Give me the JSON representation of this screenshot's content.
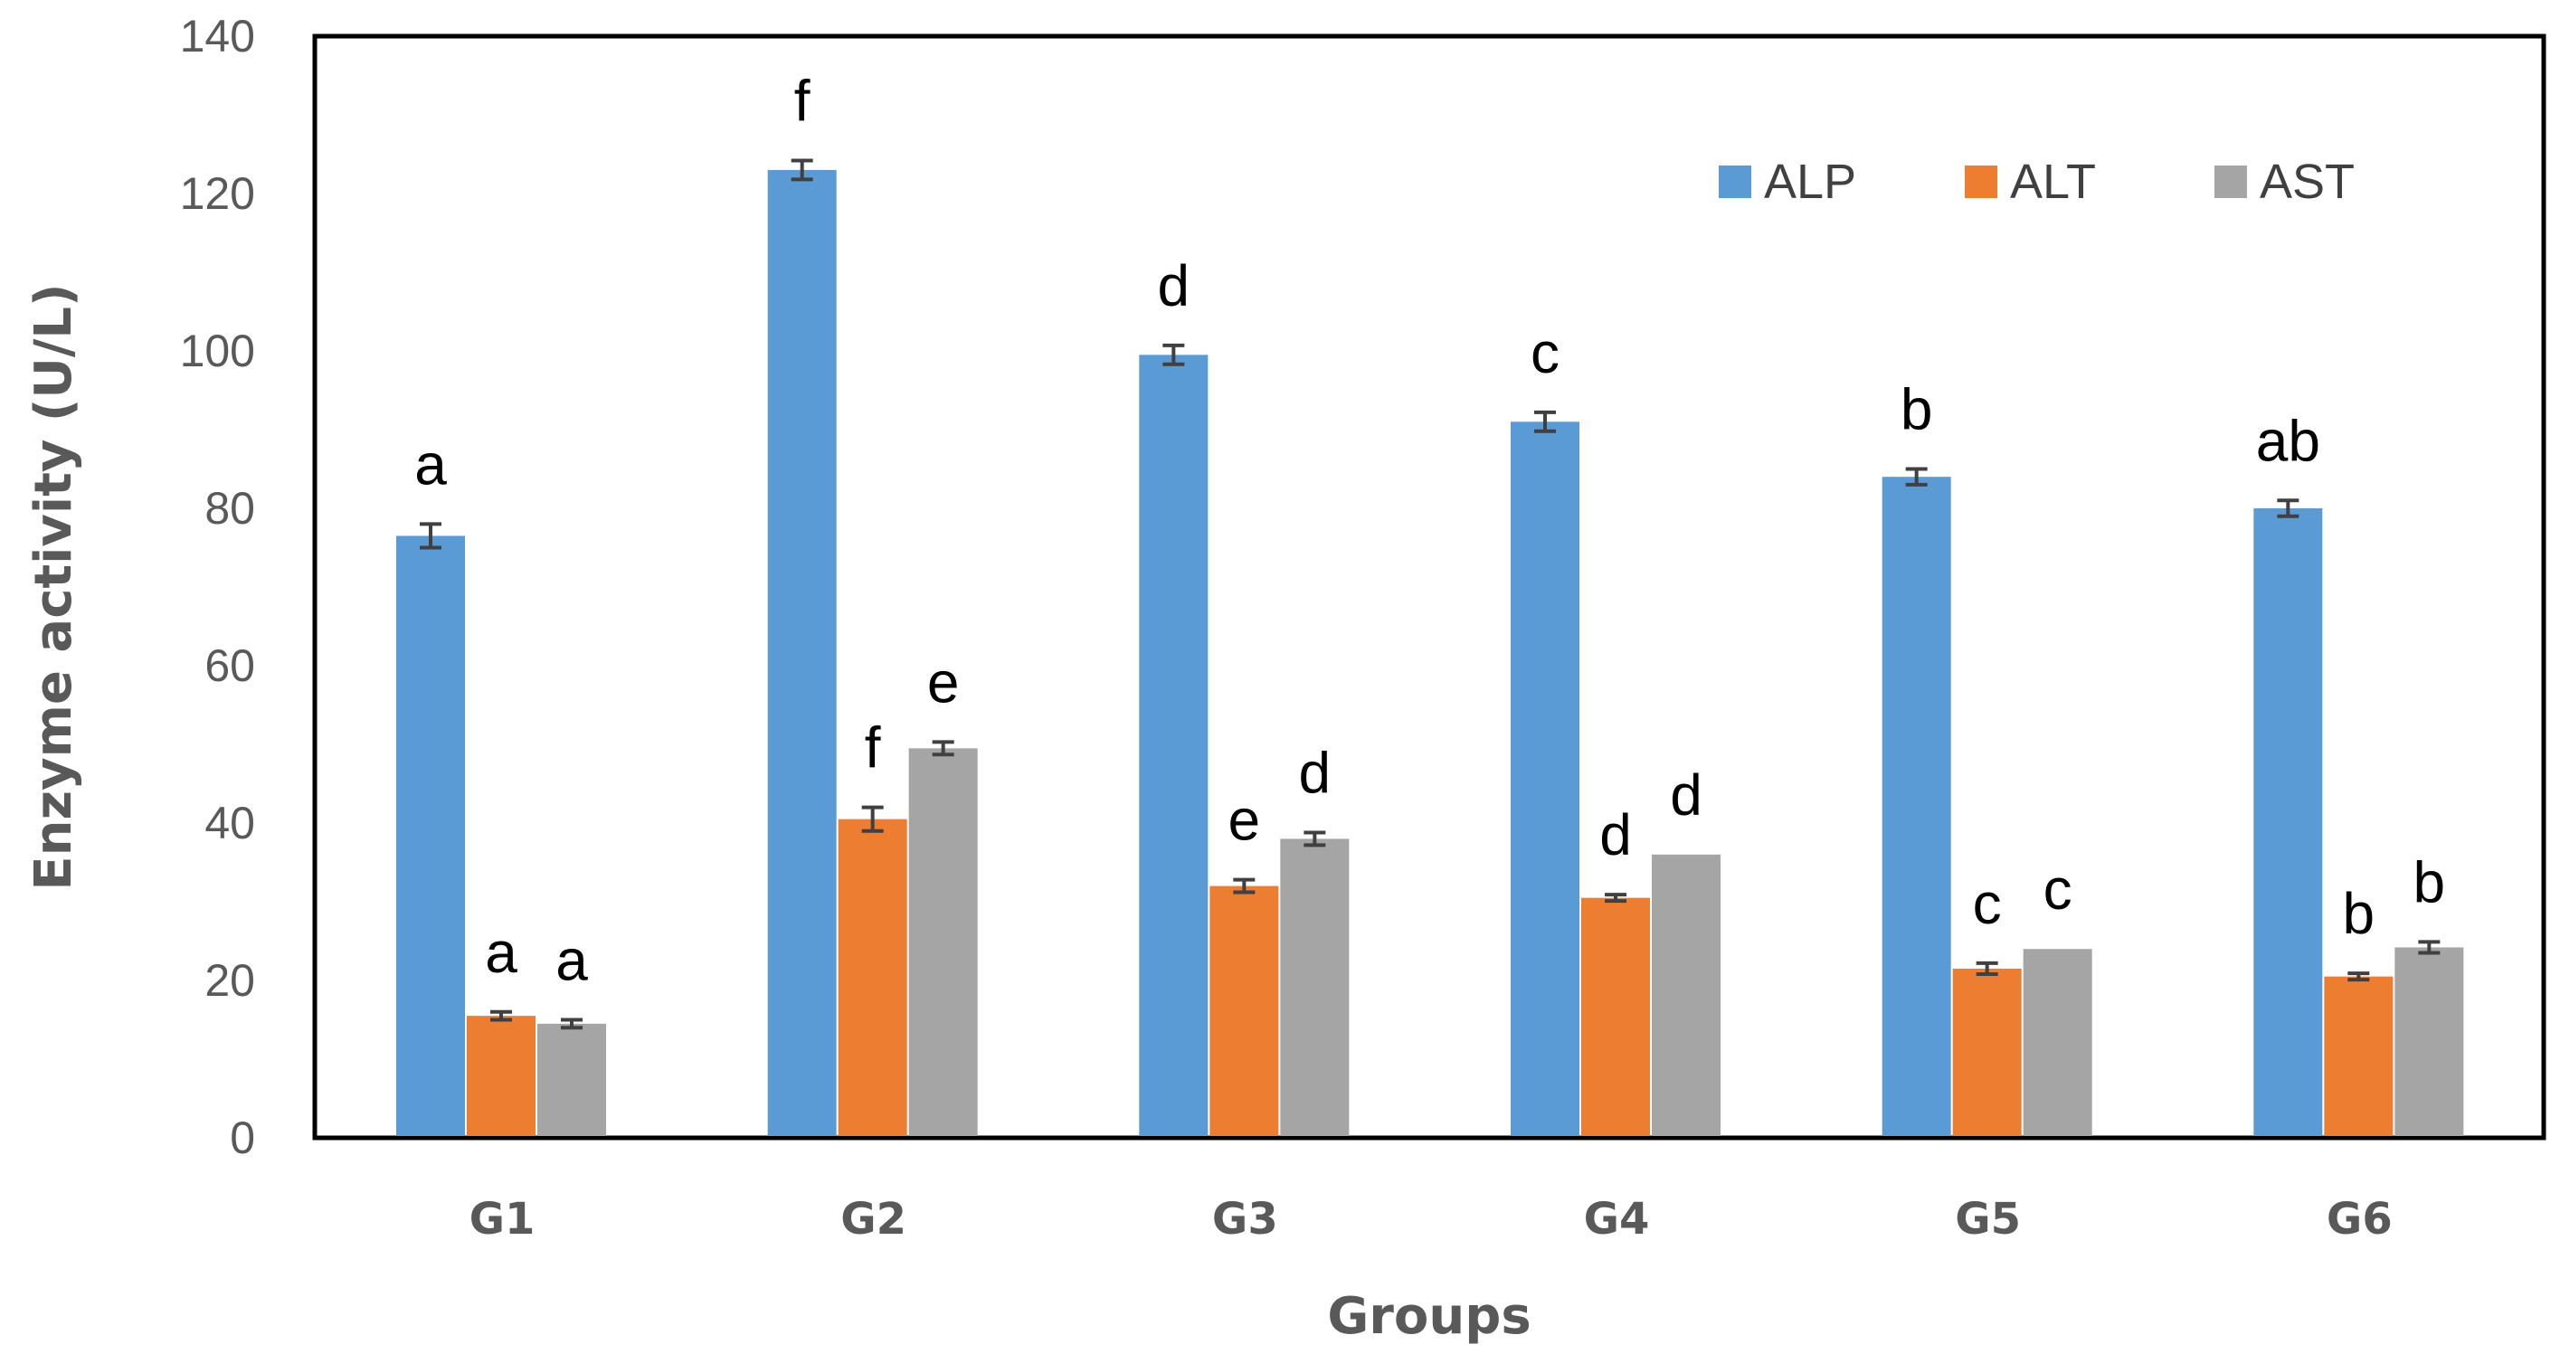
{
  "colors": {
    "ALP": "#5b9bd5",
    "ALT": "#ed7d31",
    "AST": "#a5a5a5",
    "frame": "#000000",
    "error_bar": "#404040"
  },
  "chart_data": {
    "type": "bar",
    "title": "",
    "xlabel": "Groups",
    "ylabel": "Enzyme activity (U/L)",
    "ylim": [
      0,
      140
    ],
    "yticks": [
      0,
      20,
      40,
      60,
      80,
      100,
      120,
      140
    ],
    "yticks_text": [
      "0",
      "20",
      "40",
      "60",
      "80",
      "100",
      "120",
      "140"
    ],
    "categories": [
      "G1",
      "G2",
      "G3",
      "G4",
      "G5",
      "G6"
    ],
    "legend_position": "top-right",
    "grid": false,
    "series": [
      {
        "name": "ALP",
        "values": [
          76.5,
          123,
          99.5,
          91,
          84,
          80
        ],
        "errors": [
          1.5,
          1.2,
          1.2,
          1.2,
          1.0,
          1.0
        ],
        "labels": [
          "a",
          "f",
          "d",
          "c",
          "b",
          "ab"
        ]
      },
      {
        "name": "ALT",
        "values": [
          15.5,
          40.5,
          32,
          30.5,
          21.5,
          20.5
        ],
        "errors": [
          0.5,
          1.5,
          0.8,
          0.4,
          0.7,
          0.4
        ],
        "labels": [
          "a",
          "f",
          "e",
          "d",
          "c",
          "b"
        ]
      },
      {
        "name": "AST",
        "values": [
          14.5,
          49.5,
          38,
          36,
          24,
          24.2
        ],
        "errors": [
          0.5,
          0.8,
          0.8,
          0,
          0,
          0.7
        ],
        "labels": [
          "a",
          "e",
          "d",
          "d",
          "c",
          "b"
        ]
      }
    ]
  }
}
